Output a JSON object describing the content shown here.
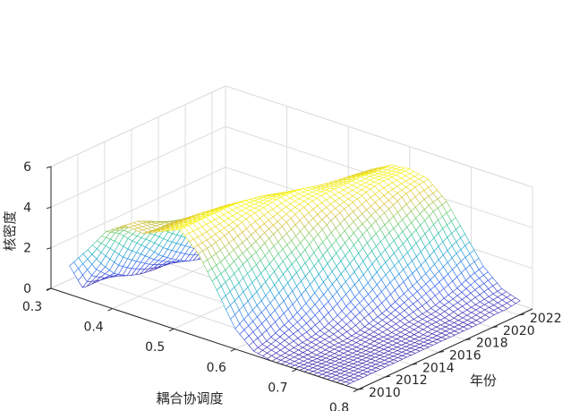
{
  "chart_data": {
    "type": "surface-3d-mesh",
    "title": "",
    "xlabel": "耦合协调度",
    "ylabel": "年份",
    "zlabel": "核密度",
    "xlim": [
      0.3,
      0.8
    ],
    "ylim": [
      2010,
      2023
    ],
    "zlim": [
      0,
      6
    ],
    "x_ticks": [
      "0.3",
      "0.4",
      "0.5",
      "0.6",
      "0.7",
      "0.8"
    ],
    "y_ticks": [
      "2010",
      "2012",
      "2014",
      "2016",
      "2018",
      "2020",
      "2022"
    ],
    "z_ticks": [
      "0",
      "2",
      "4",
      "6"
    ],
    "grid": true,
    "colormap": "parula",
    "x": [
      0.33,
      0.36,
      0.39,
      0.42,
      0.45,
      0.48,
      0.51,
      0.54,
      0.57,
      0.6,
      0.63,
      0.66,
      0.69,
      0.72,
      0.75,
      0.78
    ],
    "years": [
      2010,
      2011,
      2012,
      2013,
      2014,
      2015,
      2016,
      2017,
      2018,
      2019,
      2020,
      2021,
      2022,
      2023
    ],
    "density": [
      [
        1.4,
        2.5,
        3.7,
        4.3,
        4.2,
        4.6,
        5.0,
        4.1,
        2.6,
        1.0,
        0.2,
        0.0,
        0.0,
        0.0,
        0.0,
        0.0
      ],
      [
        0.0,
        1.5,
        3.3,
        4.2,
        4.1,
        4.6,
        5.0,
        4.2,
        2.9,
        1.4,
        0.4,
        0.1,
        0.0,
        0.0,
        0.0,
        0.0
      ],
      [
        0.0,
        0.7,
        2.6,
        3.9,
        4.1,
        4.6,
        5.0,
        4.4,
        3.3,
        1.8,
        0.7,
        0.2,
        0.0,
        0.0,
        0.0,
        0.0
      ],
      [
        0.0,
        0.3,
        2.0,
        3.5,
        4.0,
        4.6,
        5.0,
        4.6,
        3.6,
        2.3,
        1.0,
        0.3,
        0.1,
        0.0,
        0.0,
        0.0
      ],
      [
        0.0,
        0.1,
        1.3,
        3.0,
        3.9,
        4.5,
        5.0,
        4.8,
        4.0,
        2.8,
        1.4,
        0.5,
        0.1,
        0.0,
        0.0,
        0.0
      ],
      [
        0.0,
        0.0,
        0.8,
        2.5,
        3.7,
        4.4,
        4.9,
        4.9,
        4.3,
        3.2,
        1.9,
        0.8,
        0.2,
        0.1,
        0.0,
        0.0
      ],
      [
        0.0,
        0.0,
        0.4,
        1.9,
        3.4,
        4.2,
        4.8,
        5.0,
        4.6,
        3.7,
        2.4,
        1.2,
        0.4,
        0.1,
        0.0,
        0.0
      ],
      [
        0.0,
        0.0,
        0.2,
        1.4,
        3.0,
        4.0,
        4.6,
        5.0,
        4.8,
        4.1,
        2.9,
        1.6,
        0.6,
        0.2,
        0.0,
        0.0
      ],
      [
        0.0,
        0.0,
        0.1,
        1.0,
        2.5,
        3.7,
        4.4,
        4.9,
        4.9,
        4.4,
        3.4,
        2.1,
        0.9,
        0.3,
        0.1,
        0.0
      ],
      [
        0.0,
        0.0,
        0.0,
        0.6,
        2.0,
        3.4,
        4.2,
        4.7,
        4.9,
        4.6,
        3.8,
        2.5,
        1.2,
        0.4,
        0.1,
        0.0
      ],
      [
        0.0,
        0.0,
        0.0,
        0.4,
        1.6,
        3.0,
        4.0,
        4.6,
        4.9,
        4.8,
        4.1,
        2.9,
        1.5,
        0.6,
        0.2,
        0.0
      ],
      [
        0.0,
        0.0,
        0.0,
        0.3,
        1.3,
        2.7,
        3.8,
        4.5,
        4.9,
        4.9,
        4.4,
        3.3,
        1.9,
        0.8,
        0.3,
        0.1
      ],
      [
        0.0,
        0.0,
        0.0,
        0.3,
        1.2,
        2.5,
        3.6,
        4.4,
        4.8,
        4.9,
        4.6,
        3.7,
        2.3,
        1.1,
        0.4,
        0.1
      ],
      [
        0.0,
        0.0,
        0.0,
        0.3,
        1.2,
        2.4,
        3.5,
        4.3,
        4.8,
        4.9,
        4.7,
        3.9,
        2.6,
        1.3,
        0.5,
        0.2
      ]
    ]
  }
}
